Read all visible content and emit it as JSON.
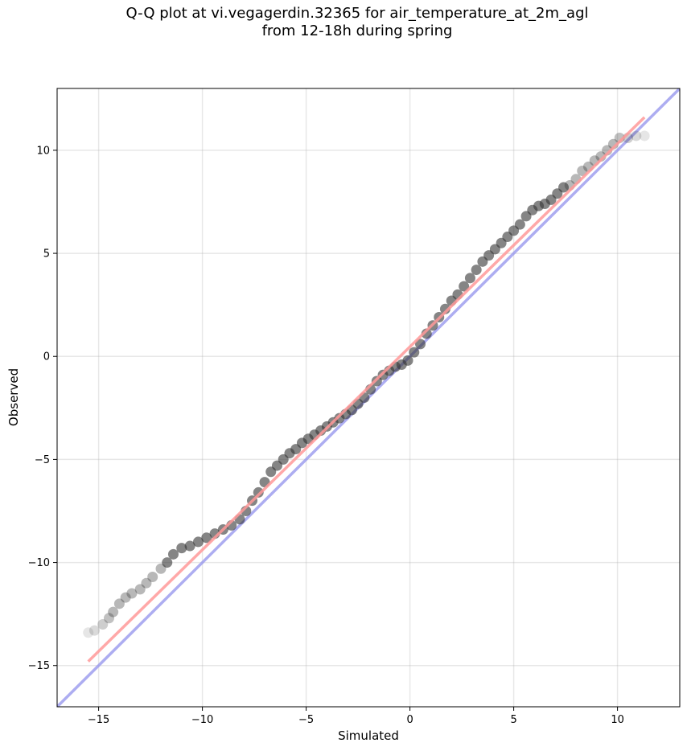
{
  "chart_data": {
    "type": "scatter",
    "title_line1": "Q-Q plot at vi.vegagerdin.32365 for air_temperature_at_2m_agl",
    "title_line2": "from 12-18h during spring",
    "xlabel": "Simulated",
    "ylabel": "Observed",
    "xlim": [
      -17,
      13
    ],
    "ylim": [
      -17,
      13
    ],
    "xticks": [
      -15,
      -10,
      -5,
      0,
      5,
      10
    ],
    "yticks": [
      -15,
      -10,
      -5,
      0,
      5,
      10
    ],
    "xtick_labels": [
      "−15",
      "−10",
      "−5",
      "0",
      "5",
      "10"
    ],
    "ytick_labels": [
      "−15",
      "−10",
      "−5",
      "0",
      "5",
      "10"
    ],
    "grid": true,
    "quantile_points": {
      "x": [
        -15.5,
        -15.2,
        -14.8,
        -14.5,
        -14.3,
        -14.0,
        -13.7,
        -13.4,
        -13.0,
        -12.7,
        -12.4,
        -12.0,
        -11.7,
        -11.4,
        -11.0,
        -10.6,
        -10.2,
        -9.8,
        -9.4,
        -9.0,
        -8.6,
        -8.2,
        -7.9,
        -7.6,
        -7.3,
        -7.0,
        -6.7,
        -6.4,
        -6.1,
        -5.8,
        -5.5,
        -5.2,
        -4.9,
        -4.6,
        -4.3,
        -4.0,
        -3.7,
        -3.4,
        -3.1,
        -2.8,
        -2.5,
        -2.2,
        -1.9,
        -1.6,
        -1.3,
        -1.0,
        -0.7,
        -0.4,
        -0.1,
        0.2,
        0.5,
        0.8,
        1.1,
        1.4,
        1.7,
        2.0,
        2.3,
        2.6,
        2.9,
        3.2,
        3.5,
        3.8,
        4.1,
        4.4,
        4.7,
        5.0,
        5.3,
        5.6,
        5.9,
        6.2,
        6.5,
        6.8,
        7.1,
        7.4,
        7.7,
        8.0,
        8.3,
        8.6,
        8.9,
        9.2,
        9.5,
        9.8,
        10.1,
        10.5,
        10.9,
        11.3
      ],
      "y": [
        -13.4,
        -13.3,
        -13.0,
        -12.7,
        -12.4,
        -12.0,
        -11.7,
        -11.5,
        -11.3,
        -11.0,
        -10.7,
        -10.3,
        -10.0,
        -9.6,
        -9.3,
        -9.2,
        -9.0,
        -8.8,
        -8.6,
        -8.4,
        -8.2,
        -7.9,
        -7.5,
        -7.0,
        -6.6,
        -6.1,
        -5.6,
        -5.3,
        -5.0,
        -4.7,
        -4.5,
        -4.2,
        -4.0,
        -3.8,
        -3.6,
        -3.4,
        -3.2,
        -3.0,
        -2.8,
        -2.6,
        -2.3,
        -2.0,
        -1.6,
        -1.2,
        -0.9,
        -0.7,
        -0.5,
        -0.4,
        -0.2,
        0.2,
        0.6,
        1.1,
        1.5,
        1.9,
        2.3,
        2.7,
        3.0,
        3.4,
        3.8,
        4.2,
        4.6,
        4.9,
        5.2,
        5.5,
        5.8,
        6.1,
        6.4,
        6.8,
        7.1,
        7.3,
        7.4,
        7.6,
        7.9,
        8.2,
        8.3,
        8.6,
        9.0,
        9.2,
        9.5,
        9.7,
        10.0,
        10.3,
        10.6,
        10.6,
        10.7,
        10.7
      ]
    },
    "fit_line": {
      "x": [
        -15.5,
        11.3
      ],
      "y": [
        -14.8,
        11.6
      ],
      "color": "#ff9999"
    },
    "identity_line": {
      "color": "#9999ee"
    },
    "point_color": "#333333"
  }
}
